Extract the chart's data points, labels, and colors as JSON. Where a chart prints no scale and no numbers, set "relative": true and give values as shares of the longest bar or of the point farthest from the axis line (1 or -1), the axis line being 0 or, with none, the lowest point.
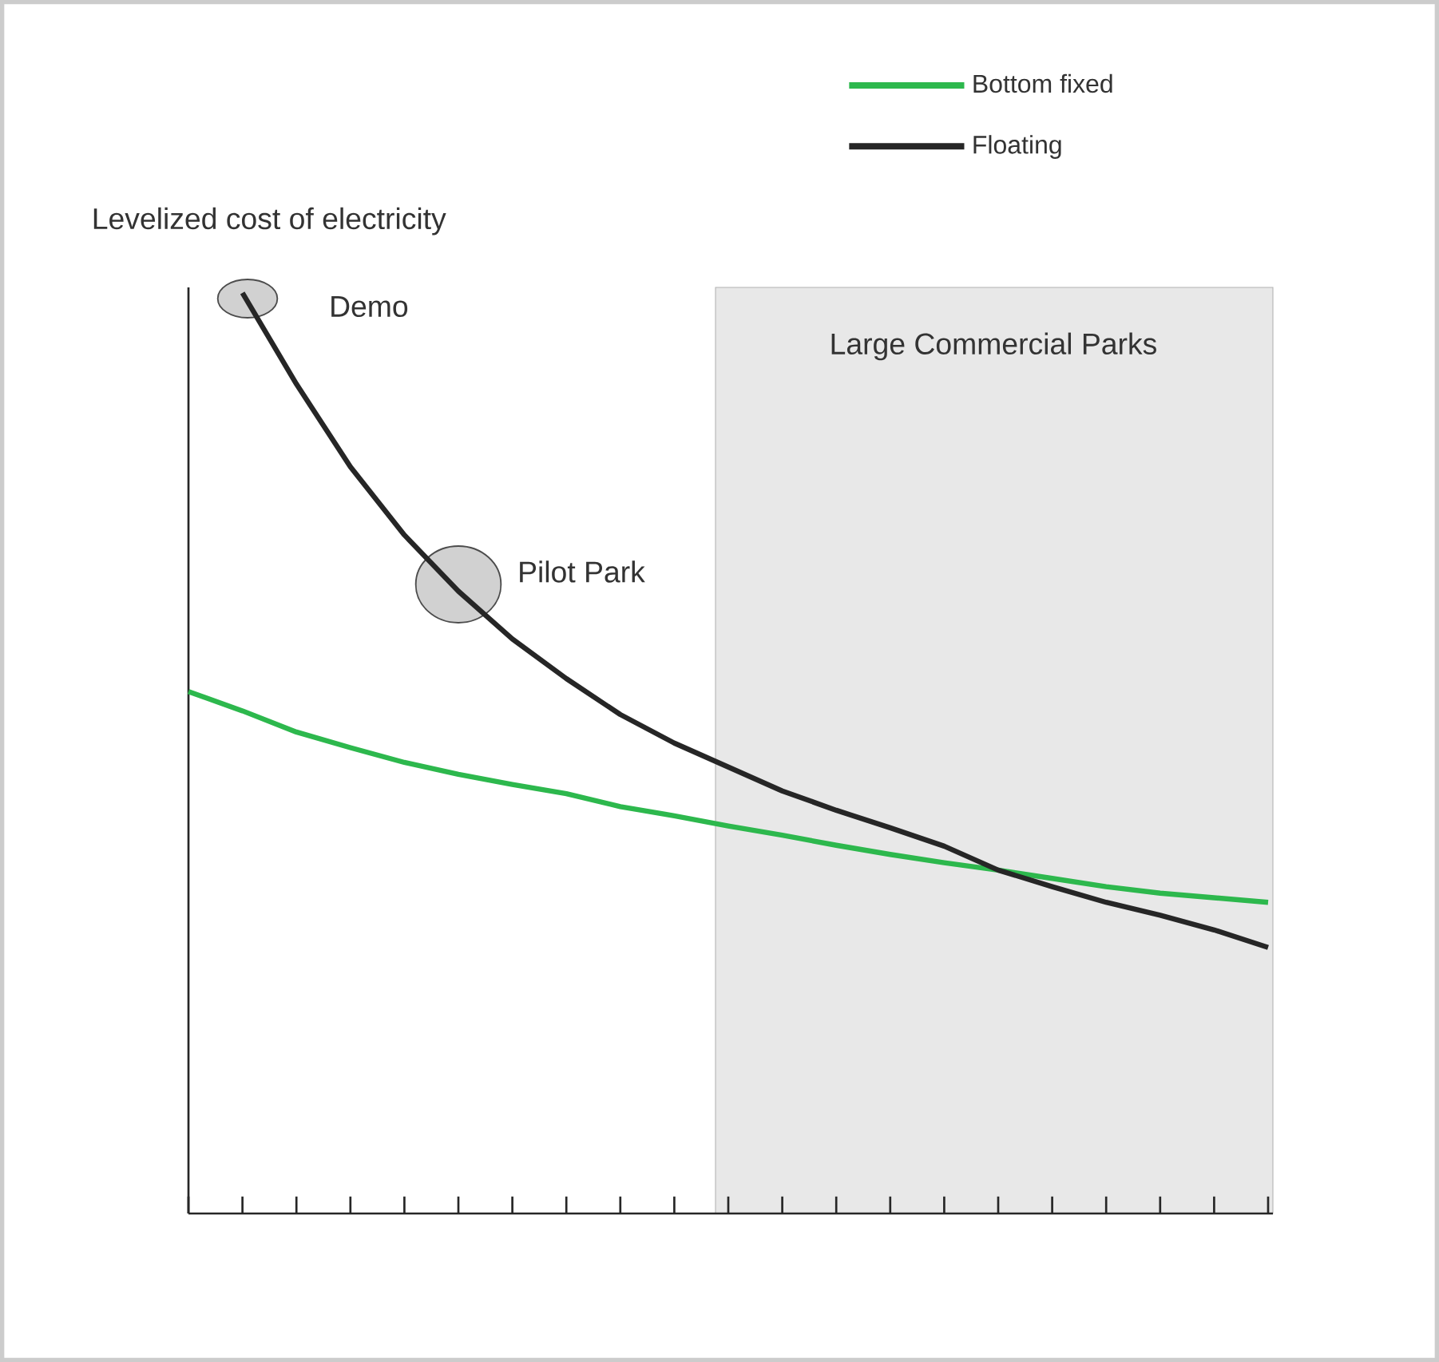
{
  "chart_data": {
    "type": "line",
    "relative": true,
    "ylabel": "Levelized cost of electricity",
    "categories": [
      null,
      null,
      null,
      null,
      null,
      null,
      null,
      null,
      null,
      null,
      null,
      null,
      null,
      null,
      null,
      null,
      null,
      null,
      null,
      null,
      null
    ],
    "series": [
      {
        "name": "Bottom fixed",
        "color": "#2db84d",
        "values": [
          0.567,
          0.546,
          0.523,
          0.506,
          0.49,
          0.477,
          0.466,
          0.456,
          0.442,
          0.432,
          0.421,
          0.411,
          0.4,
          0.39,
          0.381,
          0.373,
          0.364,
          0.355,
          0.348,
          0.343,
          0.338
        ]
      },
      {
        "name": "Floating",
        "color": "#262626",
        "values": [
          null,
          1.0,
          0.901,
          0.811,
          0.737,
          0.676,
          0.624,
          0.581,
          0.542,
          0.511,
          0.485,
          0.459,
          0.438,
          0.419,
          0.399,
          0.373,
          0.355,
          0.338,
          0.324,
          0.308,
          0.289
        ]
      }
    ],
    "annotations": [
      "Demo",
      "Pilot Park",
      "Large Commercial Parks"
    ],
    "legend": "top right",
    "marker": "none",
    "line_style": "solid",
    "grid": false
  }
}
